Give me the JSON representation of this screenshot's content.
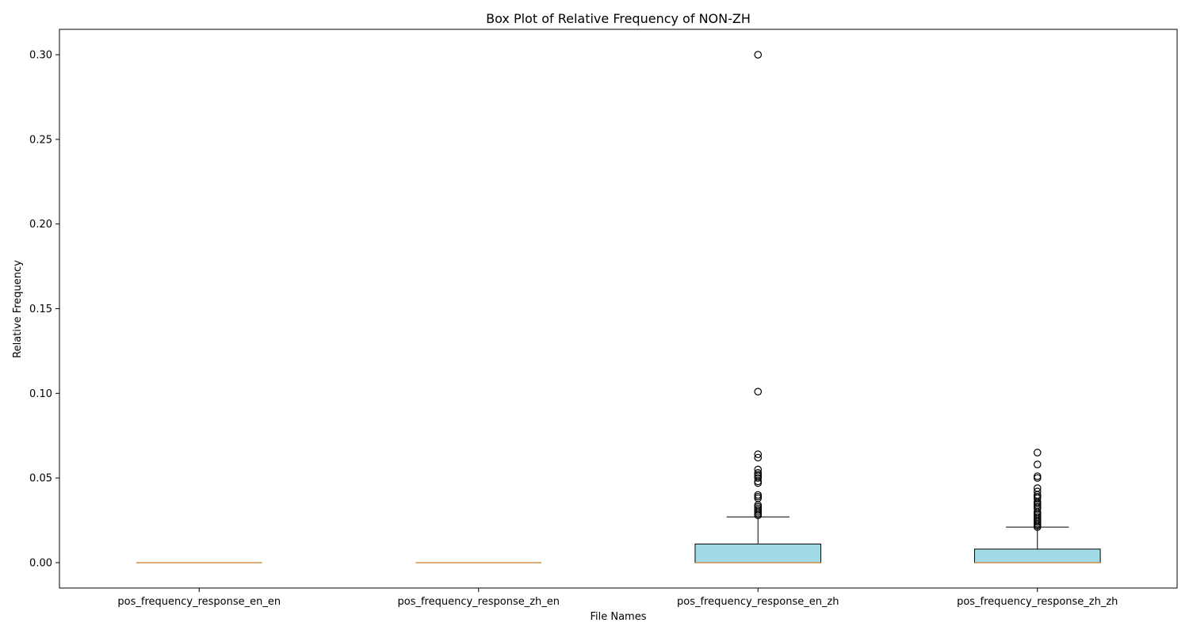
{
  "chart_data": {
    "type": "box",
    "title": "Box Plot of Relative Frequency of NON-ZH",
    "xlabel": "File Names",
    "ylabel": "Relative Frequency",
    "ylim": [
      -0.015,
      0.315
    ],
    "y_ticks": [
      0.0,
      0.05,
      0.1,
      0.15,
      0.2,
      0.25,
      0.3
    ],
    "y_tick_labels": [
      "0.00",
      "0.05",
      "0.10",
      "0.15",
      "0.20",
      "0.25",
      "0.30"
    ],
    "grid": false,
    "colors": {
      "box_fill": "#a0dbe6",
      "box_edge": "#000000",
      "median": "#d4914a",
      "whisker": "#000000",
      "flier_edge": "#000000"
    },
    "categories": [
      "pos_frequency_response_en_en",
      "pos_frequency_response_zh_en",
      "pos_frequency_response_en_zh",
      "pos_frequency_response_zh_zh"
    ],
    "boxes": [
      {
        "q1": 0.0,
        "median": 0.0,
        "q3": 0.0,
        "whisker_low": 0.0,
        "whisker_high": 0.0,
        "fliers": []
      },
      {
        "q1": 0.0,
        "median": 0.0,
        "q3": 0.0,
        "whisker_low": 0.0,
        "whisker_high": 0.0,
        "fliers": []
      },
      {
        "q1": 0.0,
        "median": 0.0,
        "q3": 0.011,
        "whisker_low": 0.0,
        "whisker_high": 0.027,
        "fliers": [
          0.3,
          0.101,
          0.064,
          0.062,
          0.055,
          0.053,
          0.052,
          0.051,
          0.05,
          0.048,
          0.047,
          0.04,
          0.039,
          0.038,
          0.034,
          0.033,
          0.032,
          0.031,
          0.03,
          0.029,
          0.028,
          0.028
        ]
      },
      {
        "q1": 0.0,
        "median": 0.0,
        "q3": 0.008,
        "whisker_low": 0.0,
        "whisker_high": 0.021,
        "fliers": [
          0.065,
          0.058,
          0.051,
          0.05,
          0.044,
          0.042,
          0.04,
          0.039,
          0.038,
          0.036,
          0.035,
          0.034,
          0.033,
          0.032,
          0.03,
          0.029,
          0.028,
          0.027,
          0.026,
          0.025,
          0.025,
          0.024,
          0.023,
          0.022,
          0.022,
          0.021
        ]
      }
    ]
  }
}
